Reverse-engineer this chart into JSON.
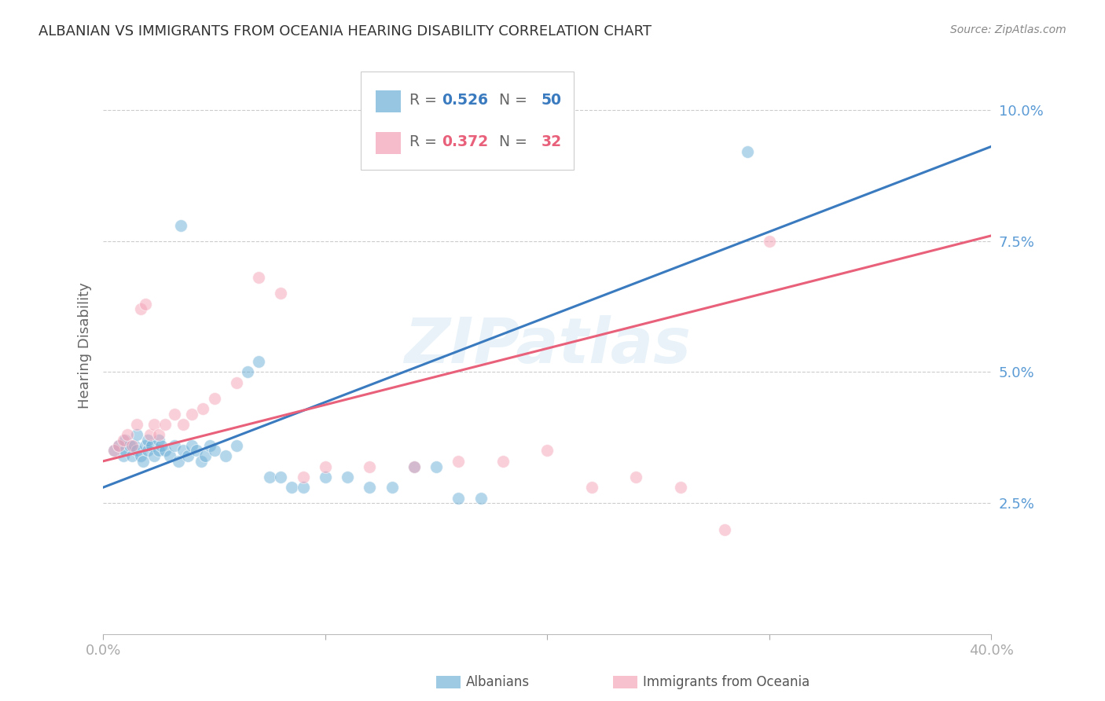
{
  "title": "ALBANIAN VS IMMIGRANTS FROM OCEANIA HEARING DISABILITY CORRELATION CHART",
  "source": "Source: ZipAtlas.com",
  "ylabel": "Hearing Disability",
  "watermark": "ZIPatlas",
  "xlim": [
    0.0,
    0.4
  ],
  "ylim": [
    0.0,
    0.11
  ],
  "yticks": [
    0.025,
    0.05,
    0.075,
    0.1
  ],
  "ytick_labels": [
    "2.5%",
    "5.0%",
    "7.5%",
    "10.0%"
  ],
  "xticks": [
    0.0,
    0.1,
    0.2,
    0.3,
    0.4
  ],
  "xtick_labels": [
    "0.0%",
    "",
    "",
    "",
    "40.0%"
  ],
  "blue_R": 0.526,
  "blue_N": 50,
  "pink_R": 0.372,
  "pink_N": 32,
  "blue_color": "#6aaed6",
  "pink_color": "#f4a0b5",
  "blue_line_color": "#3a7abf",
  "pink_line_color": "#e8607a",
  "title_color": "#333333",
  "axis_color": "#5b9bd5",
  "grid_color": "#cccccc",
  "background_color": "#ffffff",
  "blue_scatter_x": [
    0.005,
    0.007,
    0.009,
    0.01,
    0.01,
    0.012,
    0.013,
    0.014,
    0.015,
    0.015,
    0.017,
    0.018,
    0.019,
    0.02,
    0.02,
    0.022,
    0.023,
    0.025,
    0.025,
    0.026,
    0.028,
    0.03,
    0.032,
    0.034,
    0.036,
    0.038,
    0.04,
    0.042,
    0.044,
    0.046,
    0.048,
    0.05,
    0.055,
    0.06,
    0.065,
    0.07,
    0.075,
    0.08,
    0.085,
    0.09,
    0.1,
    0.11,
    0.12,
    0.13,
    0.14,
    0.15,
    0.16,
    0.17,
    0.29,
    0.035
  ],
  "blue_scatter_y": [
    0.035,
    0.036,
    0.034,
    0.035,
    0.037,
    0.036,
    0.034,
    0.036,
    0.035,
    0.038,
    0.034,
    0.033,
    0.036,
    0.035,
    0.037,
    0.036,
    0.034,
    0.035,
    0.037,
    0.036,
    0.035,
    0.034,
    0.036,
    0.033,
    0.035,
    0.034,
    0.036,
    0.035,
    0.033,
    0.034,
    0.036,
    0.035,
    0.034,
    0.036,
    0.05,
    0.052,
    0.03,
    0.03,
    0.028,
    0.028,
    0.03,
    0.03,
    0.028,
    0.028,
    0.032,
    0.032,
    0.026,
    0.026,
    0.092,
    0.078
  ],
  "pink_scatter_x": [
    0.005,
    0.007,
    0.009,
    0.011,
    0.013,
    0.015,
    0.017,
    0.019,
    0.021,
    0.023,
    0.025,
    0.028,
    0.032,
    0.036,
    0.04,
    0.045,
    0.05,
    0.06,
    0.07,
    0.08,
    0.09,
    0.1,
    0.12,
    0.14,
    0.16,
    0.18,
    0.2,
    0.22,
    0.24,
    0.26,
    0.28,
    0.3
  ],
  "pink_scatter_y": [
    0.035,
    0.036,
    0.037,
    0.038,
    0.036,
    0.04,
    0.062,
    0.063,
    0.038,
    0.04,
    0.038,
    0.04,
    0.042,
    0.04,
    0.042,
    0.043,
    0.045,
    0.048,
    0.068,
    0.065,
    0.03,
    0.032,
    0.032,
    0.032,
    0.033,
    0.033,
    0.035,
    0.028,
    0.03,
    0.028,
    0.02,
    0.075
  ],
  "blue_line_x": [
    0.0,
    0.4
  ],
  "blue_line_y_start": 0.028,
  "blue_line_y_end": 0.093,
  "pink_line_x": [
    0.0,
    0.4
  ],
  "pink_line_y_start": 0.033,
  "pink_line_y_end": 0.076
}
